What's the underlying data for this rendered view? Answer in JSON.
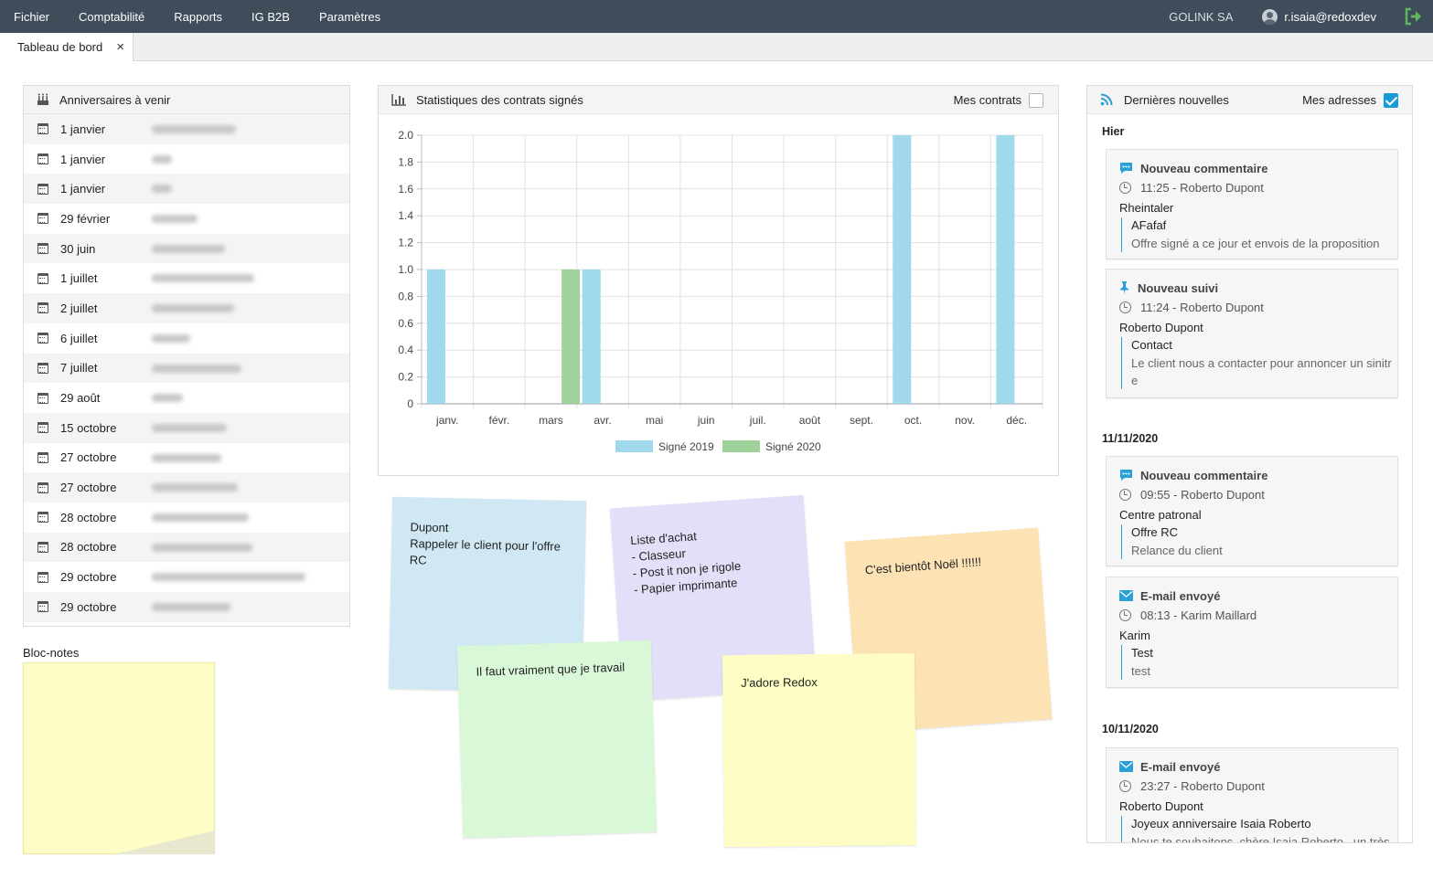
{
  "menu": {
    "items": [
      "Fichier",
      "Comptabilité",
      "Rapports",
      "IG B2B",
      "Paramètres"
    ],
    "company": "GOLINK SA",
    "user": "r.isaia@redoxdev"
  },
  "tabs": [
    {
      "label": "Tableau de bord",
      "close": "×"
    }
  ],
  "birthdays": {
    "title": "Anniversaires à venir",
    "rows": [
      {
        "date": "1 janvier"
      },
      {
        "date": "1 janvier"
      },
      {
        "date": "1 janvier"
      },
      {
        "date": "29 février"
      },
      {
        "date": "30 juin"
      },
      {
        "date": "1 juillet"
      },
      {
        "date": "2 juillet"
      },
      {
        "date": "6 juillet"
      },
      {
        "date": "7 juillet"
      },
      {
        "date": "29 août"
      },
      {
        "date": "15 octobre"
      },
      {
        "date": "27 octobre"
      },
      {
        "date": "27 octobre"
      },
      {
        "date": "28 octobre"
      },
      {
        "date": "28 octobre"
      },
      {
        "date": "29 octobre"
      },
      {
        "date": "29 octobre"
      }
    ]
  },
  "notepad": {
    "label": "Bloc-notes"
  },
  "stats": {
    "title": "Statistiques des contrats signés",
    "mine_label": "Mes contrats",
    "mine_checked": false
  },
  "chart_data": {
    "type": "bar",
    "categories": [
      "janv.",
      "févr.",
      "mars",
      "avr.",
      "mai",
      "juin",
      "juil.",
      "août",
      "sept.",
      "oct.",
      "nov.",
      "déc."
    ],
    "series": [
      {
        "name": "Signé 2019",
        "color": "#a0d8ec",
        "values": [
          1,
          0,
          0,
          1,
          0,
          0,
          0,
          0,
          0,
          2,
          0,
          2
        ]
      },
      {
        "name": "Signé 2020",
        "color": "#9fd29b",
        "values": [
          0,
          0,
          1,
          0,
          0,
          0,
          0,
          0,
          0,
          0,
          0,
          0
        ]
      }
    ],
    "yticks": [
      "2.0",
      "1.8",
      "1.6",
      "1.4",
      "1.2",
      "1.0",
      "0.8",
      "0.6",
      "0.4",
      "0.2",
      "0"
    ],
    "ylim": [
      0,
      2
    ],
    "grid": true,
    "legend": "bottom"
  },
  "notes": [
    {
      "text": "Dupont\nRappeler le client pour l'offre RC",
      "color": "#cfe8f3"
    },
    {
      "text": "Liste d'achat\n - Classeur\n - Post it non je rigole\n - Papier imprimante",
      "color": "#e2e0f8"
    },
    {
      "text": "C'est bientôt Noël !!!!!!",
      "color": "#fde2b4"
    },
    {
      "text": "Il faut vraiment que je travail",
      "color": "#d9f8d7"
    },
    {
      "text": "J'adore Redox",
      "color": "#fdfdc5"
    }
  ],
  "news": {
    "title": "Dernières nouvelles",
    "mine_label": "Mes adresses",
    "mine_checked": true,
    "days": [
      "Hier",
      "11/11/2020",
      "10/11/2020"
    ],
    "cards": [
      {
        "icon": "comment-icon",
        "type": "Nouveau commentaire",
        "time": "11:25 - Roberto Dupont",
        "who": "Rheintaler",
        "subject": "AFafaf",
        "desc": "Offre signé a ce jour et envois de la proposition"
      },
      {
        "icon": "pin-icon",
        "type": "Nouveau suivi",
        "time": "11:24 - Roberto Dupont",
        "who": "Roberto Dupont",
        "subject": "Contact",
        "desc": "Le client nous a contacter pour annoncer un sinitr e"
      },
      {
        "icon": "comment-icon",
        "type": "Nouveau commentaire",
        "time": "09:55 - Roberto Dupont",
        "who": "Centre patronal",
        "subject": "Offre RC",
        "desc": "Relance du client"
      },
      {
        "icon": "mail-icon",
        "type": "E-mail envoyé",
        "time": "08:13 - Karim Maillard",
        "who": "Karim",
        "subject": "Test",
        "desc": "test"
      },
      {
        "icon": "mail-icon",
        "type": "E-mail envoyé",
        "time": "23:27 - Roberto Dupont",
        "who": "Roberto Dupont",
        "subject": "Joyeux anniversaire Isaia Roberto",
        "desc": "Nous te souhaitons, chère Isaia Roberto , un très"
      }
    ]
  }
}
